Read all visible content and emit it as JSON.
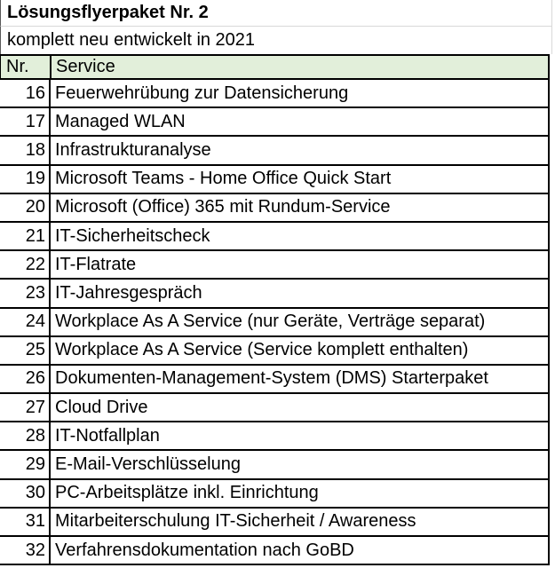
{
  "title": "Lösungsflyerpaket Nr. 2",
  "subtitle": "komplett neu entwickelt in 2021",
  "table": {
    "columns": [
      "Nr.",
      "Service"
    ],
    "rows": [
      {
        "nr": "16",
        "service": "Feuerwehrübung zur Datensicherung"
      },
      {
        "nr": "17",
        "service": "Managed WLAN"
      },
      {
        "nr": "18",
        "service": "Infrastrukturanalyse"
      },
      {
        "nr": "19",
        "service": "Microsoft Teams - Home Office Quick Start"
      },
      {
        "nr": "20",
        "service": "Microsoft (Office) 365 mit Rundum-Service"
      },
      {
        "nr": "21",
        "service": "IT-Sicherheitscheck"
      },
      {
        "nr": "22",
        "service": "IT-Flatrate"
      },
      {
        "nr": "23",
        "service": "IT-Jahresgespräch"
      },
      {
        "nr": "24",
        "service": "Workplace As A Service (nur Geräte, Verträge separat)"
      },
      {
        "nr": "25",
        "service": "Workplace As A Service (Service komplett enthalten)"
      },
      {
        "nr": "26",
        "service": "Dokumenten-Management-System (DMS) Starterpaket"
      },
      {
        "nr": "27",
        "service": "Cloud Drive"
      },
      {
        "nr": "28",
        "service": "IT-Notfallplan"
      },
      {
        "nr": "29",
        "service": "E-Mail-Verschlüsselung"
      },
      {
        "nr": "30",
        "service": "PC-Arbeitsplätze inkl. Einrichtung"
      },
      {
        "nr": "31",
        "service": "Mitarbeiterschulung IT-Sicherheit / Awareness"
      },
      {
        "nr": "32",
        "service": "Verfahrensdokumentation nach GoBD"
      }
    ]
  },
  "colors": {
    "header_bg": "#e2efda",
    "table_border": "#000000",
    "gridline": "#d9d9d9"
  }
}
